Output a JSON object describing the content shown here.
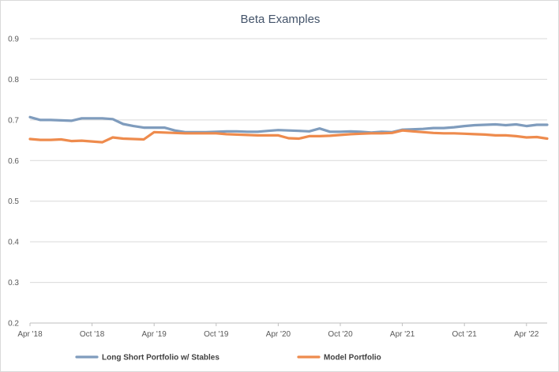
{
  "chart_data": {
    "type": "line",
    "title": "Beta Examples",
    "xlabel": "",
    "ylabel": "",
    "ylim": [
      0.2,
      0.9
    ],
    "yticks": [
      "0.2",
      "0.3",
      "0.4",
      "0.5",
      "0.6",
      "0.7",
      "0.8",
      "0.9"
    ],
    "xlim": [
      "2018-04",
      "2022-06"
    ],
    "xticks": [
      {
        "label": "Apr '18",
        "date": "2018-04"
      },
      {
        "label": "Oct '18",
        "date": "2018-10"
      },
      {
        "label": "Apr '19",
        "date": "2019-04"
      },
      {
        "label": "Oct '19",
        "date": "2019-10"
      },
      {
        "label": "Apr '20",
        "date": "2020-04"
      },
      {
        "label": "Oct '20",
        "date": "2020-10"
      },
      {
        "label": "Apr '21",
        "date": "2021-04"
      },
      {
        "label": "Oct '21",
        "date": "2021-10"
      },
      {
        "label": "Apr '22",
        "date": "2022-04"
      }
    ],
    "grid": true,
    "legend_position": "bottom",
    "x": [
      "2018-04",
      "2018-05",
      "2018-06",
      "2018-07",
      "2018-08",
      "2018-09",
      "2018-10",
      "2018-11",
      "2018-12",
      "2019-01",
      "2019-02",
      "2019-03",
      "2019-04",
      "2019-05",
      "2019-06",
      "2019-07",
      "2019-08",
      "2019-09",
      "2019-10",
      "2019-11",
      "2019-12",
      "2020-01",
      "2020-02",
      "2020-03",
      "2020-04",
      "2020-05",
      "2020-06",
      "2020-07",
      "2020-08",
      "2020-09",
      "2020-10",
      "2020-11",
      "2020-12",
      "2021-01",
      "2021-02",
      "2021-03",
      "2021-04",
      "2021-05",
      "2021-06",
      "2021-07",
      "2021-08",
      "2021-09",
      "2021-10",
      "2021-11",
      "2021-12",
      "2022-01",
      "2022-02",
      "2022-03",
      "2022-04",
      "2022-05",
      "2022-06"
    ],
    "series": [
      {
        "name": "Long Short Portfolio w/ Stables",
        "color": "#7f9cbd",
        "values": [
          0.707,
          0.7,
          0.7,
          0.699,
          0.698,
          0.704,
          0.704,
          0.704,
          0.702,
          0.69,
          0.685,
          0.681,
          0.681,
          0.681,
          0.674,
          0.67,
          0.67,
          0.67,
          0.671,
          0.672,
          0.672,
          0.671,
          0.671,
          0.673,
          0.675,
          0.674,
          0.673,
          0.672,
          0.679,
          0.671,
          0.671,
          0.672,
          0.671,
          0.669,
          0.671,
          0.67,
          0.676,
          0.677,
          0.678,
          0.68,
          0.68,
          0.682,
          0.685,
          0.687,
          0.688,
          0.689,
          0.687,
          0.689,
          0.685,
          0.688,
          0.688
        ]
      },
      {
        "name": "Model Portfolio",
        "color": "#ee8b4d",
        "values": [
          0.653,
          0.651,
          0.651,
          0.652,
          0.648,
          0.649,
          0.647,
          0.645,
          0.657,
          0.654,
          0.653,
          0.652,
          0.67,
          0.669,
          0.668,
          0.667,
          0.667,
          0.667,
          0.667,
          0.665,
          0.664,
          0.663,
          0.662,
          0.662,
          0.662,
          0.655,
          0.654,
          0.66,
          0.66,
          0.661,
          0.663,
          0.665,
          0.666,
          0.667,
          0.667,
          0.668,
          0.674,
          0.672,
          0.67,
          0.668,
          0.667,
          0.667,
          0.666,
          0.665,
          0.664,
          0.662,
          0.662,
          0.66,
          0.657,
          0.658,
          0.654
        ]
      }
    ]
  },
  "colors": {
    "grid": "#d9d9d9",
    "axis": "#bfbfbf",
    "title": "#44546a"
  }
}
